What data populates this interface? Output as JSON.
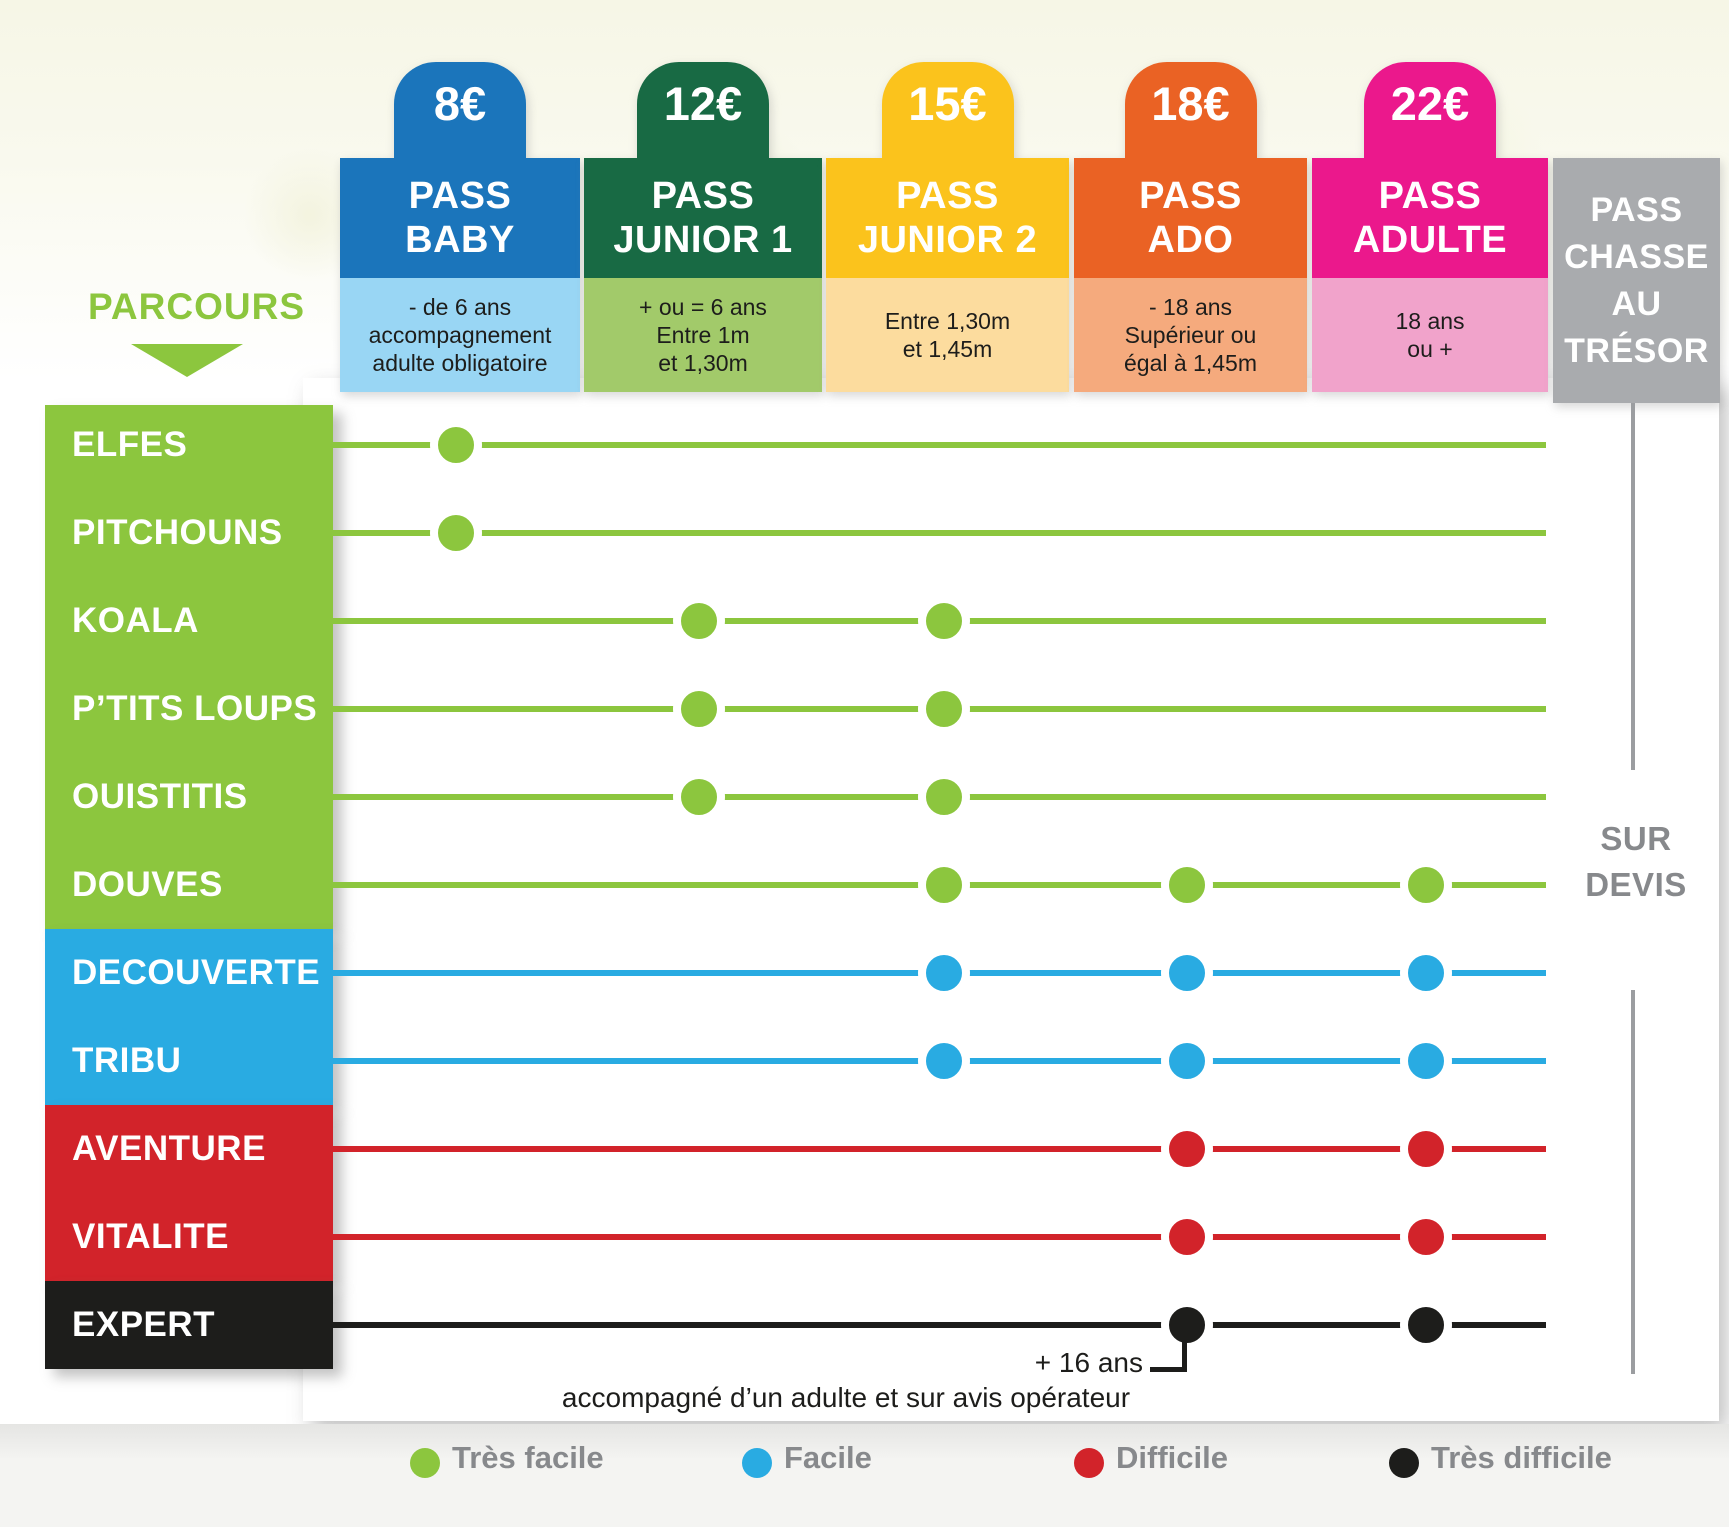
{
  "parcours": {
    "label": "PARCOURS"
  },
  "passes": [
    {
      "id": "baby",
      "price": "8€",
      "title_lines": [
        "PASS",
        "BABY"
      ],
      "note_lines": [
        "- de 6 ans",
        "accompagnement",
        "adulte obligatoire"
      ],
      "color": "#1b75bb",
      "note_bg": "#99d6f4"
    },
    {
      "id": "junior1",
      "price": "12€",
      "title_lines": [
        "PASS",
        "JUNIOR 1"
      ],
      "note_lines": [
        "+ ou = 6 ans",
        "Entre 1m",
        "et 1,30m"
      ],
      "color": "#186a44",
      "note_bg": "#a2ca6a"
    },
    {
      "id": "junior2",
      "price": "15€",
      "title_lines": [
        "PASS",
        "JUNIOR 2"
      ],
      "note_lines": [
        "Entre 1,30m",
        "et 1,45m"
      ],
      "color": "#fbc31c",
      "note_bg": "#fcdc9e"
    },
    {
      "id": "ado",
      "price": "18€",
      "title_lines": [
        "PASS",
        "ADO"
      ],
      "note_lines": [
        "- 18 ans",
        "Supérieur ou",
        "égal à 1,45m"
      ],
      "color": "#ea6224",
      "note_bg": "#f5aa7d"
    },
    {
      "id": "adulte",
      "price": "22€",
      "title_lines": [
        "PASS",
        "ADULTE"
      ],
      "note_lines": [
        "18 ans",
        "ou +"
      ],
      "color": "#eb188c",
      "note_bg": "#f1a3cb"
    },
    {
      "id": "chasse",
      "price": null,
      "title_lines": [
        "PASS",
        "CHASSE",
        "AU",
        "TRÉSOR"
      ],
      "note_lines": [],
      "color": "#a9abae",
      "note_bg": null
    }
  ],
  "difficulties": [
    {
      "id": "tres-facile",
      "label": "Très facile",
      "color": "#8cc63e"
    },
    {
      "id": "facile",
      "label": "Facile",
      "color": "#29abe2"
    },
    {
      "id": "difficile",
      "label": "Difficile",
      "color": "#d2232a"
    },
    {
      "id": "tres-difficile",
      "label": "Très difficile",
      "color": "#1d1d1b"
    }
  ],
  "rows": [
    {
      "label": "ELFES",
      "difficulty": "tres-facile",
      "passes": [
        "baby"
      ]
    },
    {
      "label": "PITCHOUNS",
      "difficulty": "tres-facile",
      "passes": [
        "baby"
      ]
    },
    {
      "label": "KOALA",
      "difficulty": "tres-facile",
      "passes": [
        "junior1",
        "junior2"
      ]
    },
    {
      "label": "P’TITS LOUPS",
      "difficulty": "tres-facile",
      "passes": [
        "junior1",
        "junior2"
      ]
    },
    {
      "label": "OUISTITIS",
      "difficulty": "tres-facile",
      "passes": [
        "junior1",
        "junior2"
      ]
    },
    {
      "label": "DOUVES",
      "difficulty": "tres-facile",
      "passes": [
        "junior2",
        "ado",
        "adulte"
      ]
    },
    {
      "label": "DECOUVERTE",
      "difficulty": "facile",
      "passes": [
        "junior2",
        "ado",
        "adulte"
      ]
    },
    {
      "label": "TRIBU",
      "difficulty": "facile",
      "passes": [
        "junior2",
        "ado",
        "adulte"
      ]
    },
    {
      "label": "AVENTURE",
      "difficulty": "difficile",
      "passes": [
        "ado",
        "adulte"
      ]
    },
    {
      "label": "VITALITE",
      "difficulty": "difficile",
      "passes": [
        "ado",
        "adulte"
      ]
    },
    {
      "label": "EXPERT",
      "difficulty": "tres-difficile",
      "passes": [
        "ado",
        "adulte"
      ]
    }
  ],
  "chasse_note": {
    "lines": [
      "SUR",
      "DEVIS"
    ]
  },
  "expert_note": {
    "age": "+ 16 ans",
    "text": "accompagné d’un adulte et sur avis opérateur"
  }
}
